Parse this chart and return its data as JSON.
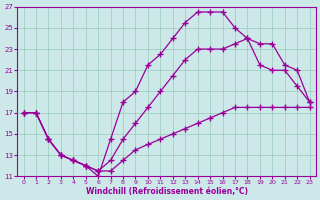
{
  "xlabel": "Windchill (Refroidissement éolien,°C)",
  "xlim": [
    -0.5,
    23.5
  ],
  "ylim": [
    11,
    27
  ],
  "yticks": [
    11,
    13,
    15,
    17,
    19,
    21,
    23,
    25,
    27
  ],
  "xticks": [
    0,
    1,
    2,
    3,
    4,
    5,
    6,
    7,
    8,
    9,
    10,
    11,
    12,
    13,
    14,
    15,
    16,
    17,
    18,
    19,
    20,
    21,
    22,
    23
  ],
  "background_color": "#cce8e8",
  "line_color": "#990099",
  "grid_color": "#99ccbb",
  "line1_x": [
    0,
    1,
    2,
    3,
    4,
    5,
    6,
    7,
    8,
    9,
    10,
    11,
    12,
    13,
    14,
    15,
    16,
    17,
    18,
    19,
    20,
    21,
    22,
    23
  ],
  "line1_y": [
    17.0,
    17.0,
    14.5,
    13.0,
    12.5,
    12.0,
    11.0,
    14.5,
    18.0,
    19.0,
    21.5,
    22.5,
    24.0,
    25.5,
    26.5,
    26.5,
    26.5,
    25.0,
    24.0,
    21.5,
    21.0,
    21.0,
    19.5,
    18.0
  ],
  "line2_x": [
    0,
    1,
    2,
    3,
    4,
    5,
    6,
    7,
    8,
    9,
    10,
    11,
    12,
    13,
    14,
    15,
    16,
    17,
    18,
    19,
    20,
    21,
    22,
    23
  ],
  "line2_y": [
    17.0,
    17.0,
    14.5,
    13.0,
    12.5,
    12.0,
    11.5,
    12.5,
    14.5,
    16.0,
    17.5,
    19.0,
    20.5,
    22.0,
    23.0,
    23.0,
    23.0,
    23.5,
    24.0,
    23.5,
    23.5,
    21.5,
    21.0,
    18.0
  ],
  "line3_x": [
    0,
    1,
    2,
    3,
    4,
    5,
    6,
    7,
    8,
    9,
    10,
    11,
    12,
    13,
    14,
    15,
    16,
    17,
    18,
    19,
    20,
    21,
    22,
    23
  ],
  "line3_y": [
    17.0,
    17.0,
    14.5,
    13.0,
    12.5,
    12.0,
    11.5,
    11.5,
    12.5,
    13.5,
    14.0,
    14.5,
    15.0,
    15.5,
    16.0,
    16.5,
    17.0,
    17.5,
    17.5,
    17.5,
    17.5,
    17.5,
    17.5,
    17.5
  ]
}
